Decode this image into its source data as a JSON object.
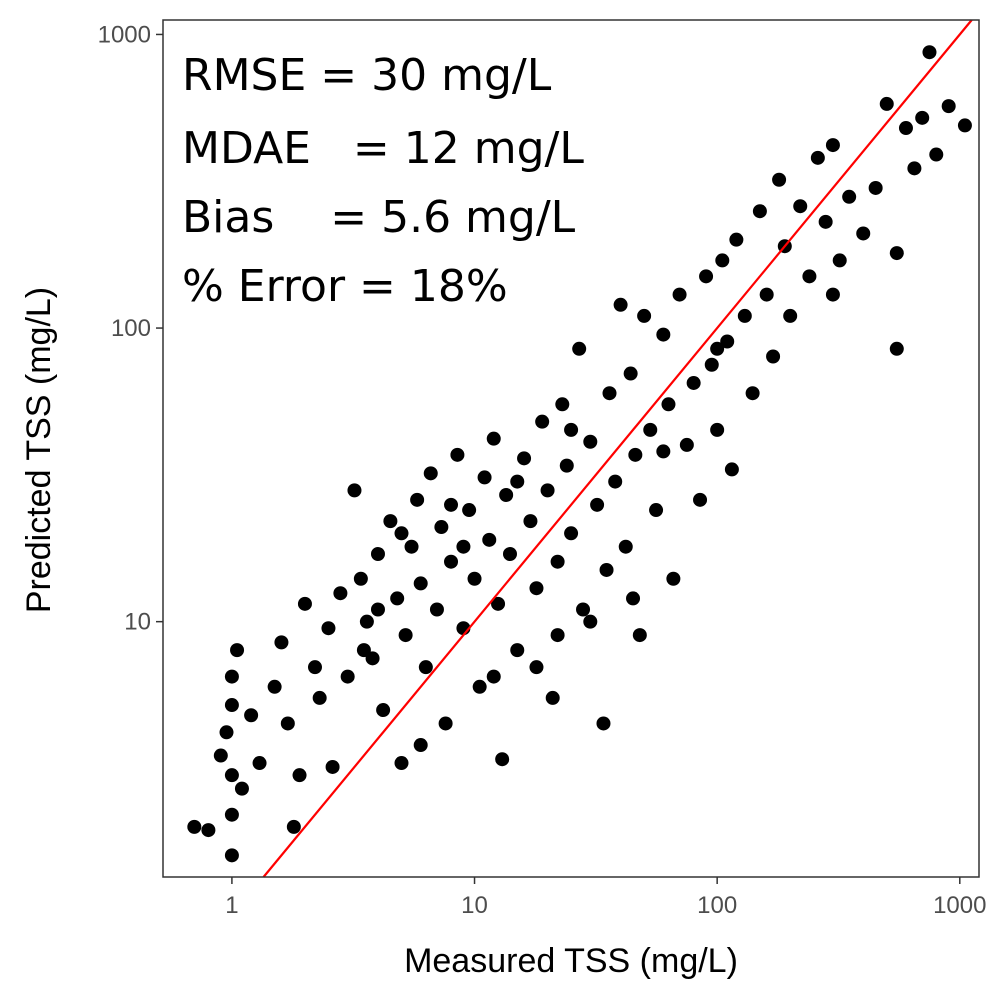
{
  "chart_data": {
    "type": "scatter",
    "xlabel": "Measured TSS (mg/L)",
    "ylabel": "Predicted TSS (mg/L)",
    "x_scale": "log10",
    "y_scale": "log10",
    "xlim": [
      0.52,
      1200
    ],
    "ylim": [
      1.35,
      1120
    ],
    "x_ticks": [
      1,
      10,
      100,
      1000
    ],
    "x_tick_labels": [
      "1",
      "10",
      "100",
      "1000"
    ],
    "y_ticks": [
      10,
      100,
      1000
    ],
    "y_tick_labels": [
      "10",
      "100",
      "1000"
    ],
    "grid": false,
    "legend": "none",
    "point_color": "#000000",
    "reference_line": {
      "type": "1:1",
      "color": "#ff0000",
      "slope": 1,
      "intercept": 0
    },
    "annotations": [
      "RMSE = 30 mg/L",
      "MDAE   = 12 mg/L",
      "Bias    = 5.6 mg/L",
      "% Error = 18%"
    ],
    "series": [
      {
        "points": [
          [
            0.7,
            2.0
          ],
          [
            0.8,
            1.95
          ],
          [
            0.9,
            3.5
          ],
          [
            0.95,
            4.2
          ],
          [
            1.0,
            1.6
          ],
          [
            1.0,
            2.2
          ],
          [
            1.0,
            3.0
          ],
          [
            1.0,
            5.2
          ],
          [
            1.0,
            6.5
          ],
          [
            1.05,
            8.0
          ],
          [
            1.1,
            2.7
          ],
          [
            1.2,
            4.8
          ],
          [
            1.3,
            3.3
          ],
          [
            1.5,
            6.0
          ],
          [
            1.6,
            8.5
          ],
          [
            1.7,
            4.5
          ],
          [
            1.8,
            2.0
          ],
          [
            1.9,
            3.0
          ],
          [
            2.0,
            11.5
          ],
          [
            2.2,
            7.0
          ],
          [
            2.3,
            5.5
          ],
          [
            2.5,
            9.5
          ],
          [
            2.6,
            3.2
          ],
          [
            2.8,
            12.5
          ],
          [
            3.0,
            6.5
          ],
          [
            3.2,
            28.0
          ],
          [
            3.4,
            14.0
          ],
          [
            3.6,
            10.0
          ],
          [
            3.8,
            7.5
          ],
          [
            4.0,
            17.0
          ],
          [
            4.2,
            5.0
          ],
          [
            4.5,
            22.0
          ],
          [
            4.8,
            12.0
          ],
          [
            5.0,
            3.3
          ],
          [
            5.2,
            9.0
          ],
          [
            5.5,
            18.0
          ],
          [
            5.8,
            26.0
          ],
          [
            6.0,
            13.5
          ],
          [
            6.3,
            7.0
          ],
          [
            6.6,
            32.0
          ],
          [
            7.0,
            11.0
          ],
          [
            7.3,
            21.0
          ],
          [
            7.6,
            4.5
          ],
          [
            8.0,
            16.0
          ],
          [
            8.5,
            37.0
          ],
          [
            9.0,
            9.5
          ],
          [
            9.5,
            24.0
          ],
          [
            10.0,
            14.0
          ],
          [
            10.5,
            6.0
          ],
          [
            11.0,
            31.0
          ],
          [
            11.5,
            19.0
          ],
          [
            12.0,
            42.0
          ],
          [
            12.5,
            11.5
          ],
          [
            13.0,
            3.4
          ],
          [
            13.5,
            27.0
          ],
          [
            14.0,
            17.0
          ],
          [
            15.0,
            8.0
          ],
          [
            16.0,
            36.0
          ],
          [
            17.0,
            22.0
          ],
          [
            18.0,
            13.0
          ],
          [
            19.0,
            48.0
          ],
          [
            20.0,
            28.0
          ],
          [
            21.0,
            5.5
          ],
          [
            22.0,
            16.0
          ],
          [
            23.0,
            55.0
          ],
          [
            24.0,
            34.0
          ],
          [
            25.0,
            20.0
          ],
          [
            27.0,
            85.0
          ],
          [
            28.0,
            11.0
          ],
          [
            30.0,
            41.0
          ],
          [
            32.0,
            25.0
          ],
          [
            34.0,
            4.5
          ],
          [
            36.0,
            60.0
          ],
          [
            38.0,
            30.0
          ],
          [
            40.0,
            120.0
          ],
          [
            42.0,
            18.0
          ],
          [
            44.0,
            70.0
          ],
          [
            46.0,
            37.0
          ],
          [
            48.0,
            9.0
          ],
          [
            50.0,
            110.0
          ],
          [
            53.0,
            45.0
          ],
          [
            56.0,
            24.0
          ],
          [
            60.0,
            95.0
          ],
          [
            63.0,
            55.0
          ],
          [
            66.0,
            14.0
          ],
          [
            70.0,
            130.0
          ],
          [
            75.0,
            40.0
          ],
          [
            80.0,
            65.0
          ],
          [
            85.0,
            26.0
          ],
          [
            90.0,
            150.0
          ],
          [
            95.0,
            75.0
          ],
          [
            100.0,
            45.0
          ],
          [
            105.0,
            170.0
          ],
          [
            110.0,
            90.0
          ],
          [
            115.0,
            33.0
          ],
          [
            120.0,
            200.0
          ],
          [
            130.0,
            110.0
          ],
          [
            140.0,
            60.0
          ],
          [
            150.0,
            250.0
          ],
          [
            160.0,
            130.0
          ],
          [
            170.0,
            80.0
          ],
          [
            180.0,
            320.0
          ],
          [
            190.0,
            190.0
          ],
          [
            200.0,
            110.0
          ],
          [
            220.0,
            260.0
          ],
          [
            240.0,
            150.0
          ],
          [
            260.0,
            380.0
          ],
          [
            280.0,
            230.0
          ],
          [
            300.0,
            420.0
          ],
          [
            320.0,
            170.0
          ],
          [
            350.0,
            280.0
          ],
          [
            400.0,
            210.0
          ],
          [
            450.0,
            300.0
          ],
          [
            500.0,
            580.0
          ],
          [
            550.0,
            180.0
          ],
          [
            600.0,
            480.0
          ],
          [
            650.0,
            350.0
          ],
          [
            700.0,
            520.0
          ],
          [
            750.0,
            870.0
          ],
          [
            800.0,
            390.0
          ],
          [
            900.0,
            570.0
          ],
          [
            1050.0,
            490.0
          ],
          [
            550.0,
            85.0
          ],
          [
            300.0,
            130.0
          ],
          [
            100.0,
            85.0
          ],
          [
            60.0,
            38.0
          ],
          [
            35.0,
            15.0
          ],
          [
            22.0,
            9.0
          ],
          [
            12.0,
            6.5
          ],
          [
            6.0,
            3.8
          ],
          [
            3.5,
            8.0
          ],
          [
            5.0,
            20.0
          ],
          [
            8.0,
            25.0
          ],
          [
            15.0,
            30.0
          ],
          [
            25.0,
            45.0
          ],
          [
            30.0,
            10.0
          ],
          [
            45.0,
            12.0
          ],
          [
            18.0,
            7.0
          ],
          [
            9.0,
            18.0
          ],
          [
            4.0,
            11.0
          ]
        ]
      }
    ]
  }
}
